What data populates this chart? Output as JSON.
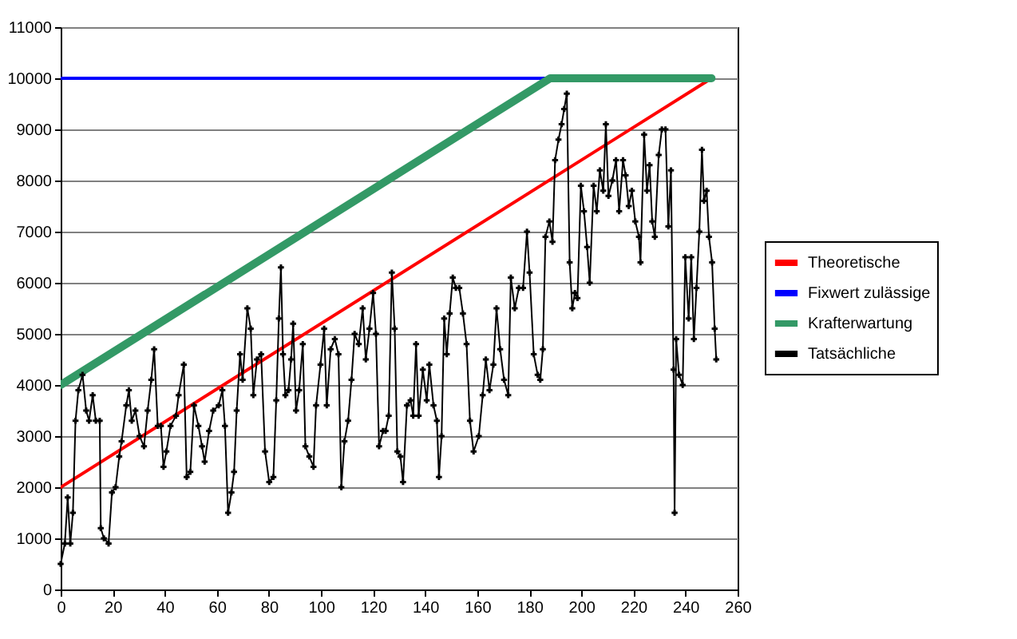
{
  "chart_data": {
    "type": "line",
    "xlim": [
      0,
      260
    ],
    "xticks": [
      0,
      20,
      40,
      60,
      80,
      100,
      120,
      140,
      160,
      180,
      200,
      220,
      240,
      260
    ],
    "ylim": [
      0,
      11000
    ],
    "yticks": [
      0,
      1000,
      2000,
      3000,
      4000,
      5000,
      6000,
      7000,
      8000,
      9000,
      10000,
      11000
    ],
    "grid": "y",
    "legend": "right",
    "series": [
      {
        "name": "Theoretische",
        "color": "#ff0000",
        "x": [
          0,
          250
        ],
        "values": [
          2000,
          10000
        ]
      },
      {
        "name": "Fixwert zulässige",
        "color": "#0000ff",
        "x": [
          0,
          186
        ],
        "values": [
          10000,
          10000
        ]
      },
      {
        "name": "Krafterwartung",
        "color": "#339966",
        "x": [
          0,
          188,
          250
        ],
        "values": [
          4000,
          10000,
          10000
        ]
      },
      {
        "name": "Tatsächliche",
        "color": "#000000",
        "marker": "cross",
        "x": [
          0,
          1.6,
          2.7,
          3.7,
          4.7,
          5.7,
          6.8,
          8.4,
          9.8,
          10.9,
          12.3,
          13.5,
          15,
          15.4,
          16.6,
          18.4,
          19.7,
          21.1,
          22.5,
          23.4,
          25.2,
          26.2,
          27.3,
          28.7,
          30.3,
          32,
          33.4,
          34.8,
          35.9,
          37.3,
          38.5,
          39.5,
          40.6,
          42.2,
          44.3,
          45.3,
          47.3,
          48.4,
          49.8,
          51.2,
          52.9,
          54.3,
          55.3,
          57,
          58.6,
          60.7,
          62.1,
          63.1,
          64.3,
          65.6,
          66.6,
          67.6,
          68.9,
          69.9,
          71.7,
          73,
          74,
          75.4,
          77,
          78.5,
          80.1,
          81.7,
          82.8,
          83.8,
          84.6,
          85.4,
          86.3,
          87.5,
          88.5,
          89.3,
          90.4,
          91.6,
          93,
          94,
          95.5,
          97.1,
          98.1,
          99.8,
          101.2,
          102.2,
          103.7,
          105.3,
          106.7,
          107.8,
          109,
          110.4,
          111.7,
          112.9,
          114.5,
          116,
          117.2,
          118.6,
          120,
          121.1,
          122.3,
          123.8,
          124.8,
          126,
          127.2,
          128.3,
          129.3,
          130.5,
          131.5,
          133,
          134.4,
          135.4,
          136.5,
          137.5,
          139.1,
          140.6,
          141.6,
          143.2,
          144.5,
          145.3,
          146.3,
          147.3,
          148.3,
          149.4,
          150.6,
          151.8,
          153.1,
          154.5,
          155.9,
          157.2,
          158.6,
          160.6,
          162.1,
          163.3,
          164.7,
          166.2,
          167.4,
          168.8,
          170.3,
          171.9,
          172.9,
          174.4,
          176,
          177.6,
          179.1,
          180.1,
          181.7,
          183.2,
          184.2,
          185.2,
          186.2,
          187.7,
          188.9,
          189.9,
          191.2,
          192.4,
          193.4,
          194.4,
          195.5,
          196.5,
          197.5,
          198.5,
          199.8,
          201,
          202.2,
          203.2,
          204.7,
          205.9,
          207.1,
          208.4,
          209.4,
          210.4,
          211.9,
          213.3,
          214.5,
          216,
          217,
          218.2,
          219.4,
          220.7,
          222.1,
          222.7,
          224.1,
          225.2,
          226.2,
          227.2,
          228.2,
          229.7,
          230.9,
          232.3,
          233.4,
          234.4,
          235.4,
          235.8,
          236.4,
          237.5,
          238.9,
          239.9,
          241.2,
          242.2,
          243.2,
          244.2,
          245.3,
          246.3,
          247.1,
          248.1,
          249,
          250.2,
          251.2,
          251.8
        ],
        "values": [
          500,
          900,
          1800,
          900,
          1500,
          3300,
          3900,
          4200,
          3500,
          3300,
          3800,
          3300,
          3300,
          1200,
          1000,
          900,
          1900,
          2000,
          2600,
          2900,
          3600,
          3900,
          3300,
          3500,
          3000,
          2800,
          3500,
          4100,
          4700,
          3200,
          3200,
          2400,
          2700,
          3200,
          3400,
          3800,
          4400,
          2200,
          2300,
          3600,
          3200,
          2800,
          2500,
          3100,
          3500,
          3600,
          3900,
          3200,
          1500,
          1900,
          2300,
          3500,
          4600,
          4100,
          5500,
          5100,
          3800,
          4500,
          4600,
          2700,
          2100,
          2200,
          3700,
          5300,
          6300,
          4600,
          3800,
          3900,
          4500,
          5200,
          3500,
          3900,
          4800,
          2800,
          2600,
          2400,
          3600,
          4400,
          5100,
          3600,
          4700,
          4900,
          4600,
          2000,
          2900,
          3300,
          4100,
          5000,
          4800,
          5500,
          4500,
          5100,
          5800,
          5000,
          2800,
          3100,
          3100,
          3400,
          6200,
          5100,
          2700,
          2600,
          2100,
          3600,
          3700,
          3400,
          4800,
          3400,
          4300,
          3700,
          4400,
          3600,
          3300,
          2200,
          3000,
          5300,
          4600,
          5400,
          6100,
          5900,
          5900,
          5400,
          4800,
          3300,
          2700,
          3000,
          3800,
          4500,
          3900,
          4400,
          5500,
          4700,
          4100,
          3800,
          6100,
          5500,
          5900,
          5900,
          7000,
          6200,
          4600,
          4200,
          4100,
          4700,
          6900,
          7200,
          6800,
          8400,
          8800,
          9100,
          9400,
          9700,
          6400,
          5500,
          5800,
          5700,
          7900,
          7400,
          6700,
          6000,
          7900,
          7400,
          8200,
          7800,
          9100,
          7700,
          8000,
          8400,
          7400,
          8400,
          8100,
          7500,
          7800,
          7200,
          6900,
          6400,
          8900,
          7800,
          8300,
          7200,
          6900,
          8500,
          9000,
          9000,
          7100,
          8200,
          4300,
          1500,
          4900,
          4200,
          4000,
          6500,
          5300,
          6500,
          4900,
          5900,
          7000,
          8600,
          7600,
          7800,
          6900,
          6400,
          5100,
          4500
        ]
      }
    ]
  }
}
